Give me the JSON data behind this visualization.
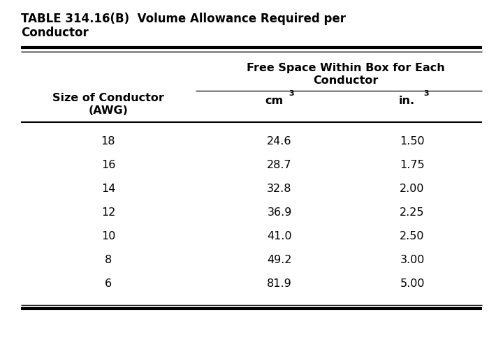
{
  "title_line1": "TABLE 314.16(B)  Volume Allowance Required per",
  "title_line2": "Conductor",
  "col_header_main_l1": "Free Space Within Box for Each",
  "col_header_main_l2": "Conductor",
  "col_header_left_l1": "Size of Conductor",
  "col_header_left_l2": "(AWG)",
  "col_header_cm3": "cm",
  "col_header_cm3_super": "3",
  "col_header_in3": "in.",
  "col_header_in3_super": "3",
  "rows": [
    [
      "18",
      "24.6",
      "1.50"
    ],
    [
      "16",
      "28.7",
      "1.75"
    ],
    [
      "14",
      "32.8",
      "2.00"
    ],
    [
      "12",
      "36.9",
      "2.25"
    ],
    [
      "10",
      "41.0",
      "2.50"
    ],
    [
      "8",
      "49.2",
      "3.00"
    ],
    [
      "6",
      "81.9",
      "5.00"
    ]
  ],
  "bg_color": "#ffffff",
  "text_color": "#000000",
  "figsize": [
    7.2,
    4.9
  ],
  "dpi": 100
}
